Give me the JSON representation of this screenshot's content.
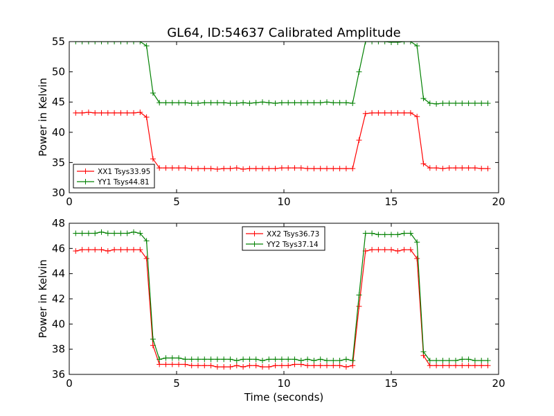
{
  "figure": {
    "title": "GL64, ID:54637 Calibrated Amplitude",
    "xlabel": "Time (seconds)"
  },
  "chart_data": [
    {
      "type": "line",
      "title": "GL64, ID:54637 Calibrated Amplitude",
      "ylabel": "Power in Kelvin",
      "xlabel": "",
      "xlim": [
        0,
        20
      ],
      "ylim": [
        30,
        55
      ],
      "xticks": [
        0,
        5,
        10,
        15,
        20
      ],
      "yticks": [
        30,
        35,
        40,
        45,
        50,
        55
      ],
      "grid": false,
      "legend_position": "lower-left",
      "series": [
        {
          "name": "XX1 Tsys33.95",
          "color": "#ff0000",
          "marker": "plus",
          "x": [
            0.3,
            0.6,
            0.9,
            1.2,
            1.5,
            1.8,
            2.1,
            2.4,
            2.7,
            3.0,
            3.3,
            3.6,
            3.9,
            4.2,
            4.5,
            4.8,
            5.1,
            5.4,
            5.7,
            6.0,
            6.3,
            6.6,
            6.9,
            7.2,
            7.5,
            7.8,
            8.1,
            8.4,
            8.7,
            9.0,
            9.3,
            9.6,
            9.9,
            10.2,
            10.5,
            10.8,
            11.1,
            11.4,
            11.7,
            12.0,
            12.3,
            12.6,
            12.9,
            13.2,
            13.5,
            13.8,
            14.1,
            14.4,
            14.7,
            15.0,
            15.3,
            15.6,
            15.9,
            16.2,
            16.5,
            16.8,
            17.1,
            17.4,
            17.7,
            18.0,
            18.3,
            18.6,
            18.9,
            19.2,
            19.5
          ],
          "y": [
            43.2,
            43.2,
            43.3,
            43.2,
            43.2,
            43.2,
            43.2,
            43.2,
            43.2,
            43.2,
            43.3,
            42.5,
            35.6,
            34.1,
            34.1,
            34.1,
            34.1,
            34.1,
            34.0,
            34.0,
            34.0,
            34.0,
            33.9,
            34.0,
            34.0,
            34.1,
            33.9,
            34.0,
            34.0,
            34.0,
            34.0,
            34.0,
            34.1,
            34.1,
            34.1,
            34.1,
            34.0,
            34.0,
            34.0,
            34.0,
            34.0,
            34.0,
            34.0,
            34.0,
            38.7,
            43.1,
            43.2,
            43.2,
            43.2,
            43.2,
            43.2,
            43.2,
            43.2,
            42.6,
            34.8,
            34.1,
            34.1,
            34.0,
            34.1,
            34.1,
            34.1,
            34.1,
            34.1,
            34.0,
            34.0
          ]
        },
        {
          "name": "YY1 Tsys44.81",
          "color": "#008000",
          "marker": "plus",
          "x": [
            0.3,
            0.6,
            0.9,
            1.2,
            1.5,
            1.8,
            2.1,
            2.4,
            2.7,
            3.0,
            3.3,
            3.6,
            3.9,
            4.2,
            4.5,
            4.8,
            5.1,
            5.4,
            5.7,
            6.0,
            6.3,
            6.6,
            6.9,
            7.2,
            7.5,
            7.8,
            8.1,
            8.4,
            8.7,
            9.0,
            9.3,
            9.6,
            9.9,
            10.2,
            10.5,
            10.8,
            11.1,
            11.4,
            11.7,
            12.0,
            12.3,
            12.6,
            12.9,
            13.2,
            13.5,
            13.8,
            14.1,
            14.4,
            14.7,
            15.0,
            15.3,
            15.6,
            15.9,
            16.2,
            16.5,
            16.8,
            17.1,
            17.4,
            17.7,
            18.0,
            18.3,
            18.6,
            18.9,
            19.2,
            19.5
          ],
          "y": [
            55.0,
            55.0,
            55.0,
            55.0,
            55.0,
            55.0,
            55.0,
            55.0,
            55.0,
            55.0,
            55.0,
            54.3,
            46.5,
            44.9,
            44.9,
            44.9,
            44.9,
            44.9,
            44.8,
            44.8,
            44.9,
            44.9,
            44.9,
            44.9,
            44.8,
            44.8,
            44.9,
            44.8,
            44.9,
            45.0,
            44.9,
            44.8,
            44.9,
            44.9,
            44.9,
            44.9,
            44.9,
            44.9,
            44.9,
            45.0,
            44.9,
            44.9,
            44.9,
            44.8,
            50.0,
            55.0,
            55.0,
            55.0,
            55.0,
            54.9,
            54.9,
            55.0,
            55.0,
            54.3,
            45.6,
            44.8,
            44.7,
            44.8,
            44.8,
            44.8,
            44.8,
            44.8,
            44.8,
            44.8,
            44.8
          ]
        }
      ]
    },
    {
      "type": "line",
      "title": "",
      "ylabel": "Power in Kelvin",
      "xlabel": "Time (seconds)",
      "xlim": [
        0,
        20
      ],
      "ylim": [
        36,
        48
      ],
      "xticks": [
        0,
        5,
        10,
        15,
        20
      ],
      "yticks": [
        36,
        38,
        40,
        42,
        44,
        46,
        48
      ],
      "grid": false,
      "legend_position": "upper-center",
      "series": [
        {
          "name": "XX2 Tsys36.73",
          "color": "#ff0000",
          "marker": "plus",
          "x": [
            0.3,
            0.6,
            0.9,
            1.2,
            1.5,
            1.8,
            2.1,
            2.4,
            2.7,
            3.0,
            3.3,
            3.6,
            3.9,
            4.2,
            4.5,
            4.8,
            5.1,
            5.4,
            5.7,
            6.0,
            6.3,
            6.6,
            6.9,
            7.2,
            7.5,
            7.8,
            8.1,
            8.4,
            8.7,
            9.0,
            9.3,
            9.6,
            9.9,
            10.2,
            10.5,
            10.8,
            11.1,
            11.4,
            11.7,
            12.0,
            12.3,
            12.6,
            12.9,
            13.2,
            13.5,
            13.8,
            14.1,
            14.4,
            14.7,
            15.0,
            15.3,
            15.6,
            15.9,
            16.2,
            16.5,
            16.8,
            17.1,
            17.4,
            17.7,
            18.0,
            18.3,
            18.6,
            18.9,
            19.2,
            19.5
          ],
          "y": [
            45.8,
            45.9,
            45.9,
            45.9,
            45.9,
            45.8,
            45.9,
            45.9,
            45.9,
            45.9,
            45.9,
            45.2,
            38.3,
            36.8,
            36.8,
            36.8,
            36.8,
            36.8,
            36.7,
            36.7,
            36.7,
            36.7,
            36.6,
            36.6,
            36.6,
            36.7,
            36.6,
            36.7,
            36.7,
            36.6,
            36.6,
            36.7,
            36.7,
            36.7,
            36.8,
            36.8,
            36.7,
            36.7,
            36.7,
            36.7,
            36.7,
            36.7,
            36.6,
            36.7,
            41.4,
            45.8,
            45.9,
            45.9,
            45.9,
            45.9,
            45.8,
            45.9,
            45.9,
            45.2,
            37.5,
            36.7,
            36.7,
            36.7,
            36.7,
            36.7,
            36.7,
            36.7,
            36.7,
            36.7,
            36.7
          ]
        },
        {
          "name": "YY2 Tsys37.14",
          "color": "#008000",
          "marker": "plus",
          "x": [
            0.3,
            0.6,
            0.9,
            1.2,
            1.5,
            1.8,
            2.1,
            2.4,
            2.7,
            3.0,
            3.3,
            3.6,
            3.9,
            4.2,
            4.5,
            4.8,
            5.1,
            5.4,
            5.7,
            6.0,
            6.3,
            6.6,
            6.9,
            7.2,
            7.5,
            7.8,
            8.1,
            8.4,
            8.7,
            9.0,
            9.3,
            9.6,
            9.9,
            10.2,
            10.5,
            10.8,
            11.1,
            11.4,
            11.7,
            12.0,
            12.3,
            12.6,
            12.9,
            13.2,
            13.5,
            13.8,
            14.1,
            14.4,
            14.7,
            15.0,
            15.3,
            15.6,
            15.9,
            16.2,
            16.5,
            16.8,
            17.1,
            17.4,
            17.7,
            18.0,
            18.3,
            18.6,
            18.9,
            19.2,
            19.5
          ],
          "y": [
            47.2,
            47.2,
            47.2,
            47.2,
            47.3,
            47.2,
            47.2,
            47.2,
            47.2,
            47.3,
            47.2,
            46.6,
            38.8,
            37.2,
            37.3,
            37.3,
            37.3,
            37.2,
            37.2,
            37.2,
            37.2,
            37.2,
            37.2,
            37.2,
            37.2,
            37.1,
            37.2,
            37.2,
            37.2,
            37.1,
            37.2,
            37.2,
            37.2,
            37.2,
            37.2,
            37.1,
            37.2,
            37.1,
            37.2,
            37.1,
            37.1,
            37.1,
            37.2,
            37.1,
            42.3,
            47.2,
            47.2,
            47.1,
            47.1,
            47.1,
            47.1,
            47.2,
            47.2,
            46.5,
            37.8,
            37.1,
            37.1,
            37.1,
            37.1,
            37.1,
            37.2,
            37.2,
            37.1,
            37.1,
            37.1
          ]
        }
      ]
    }
  ]
}
